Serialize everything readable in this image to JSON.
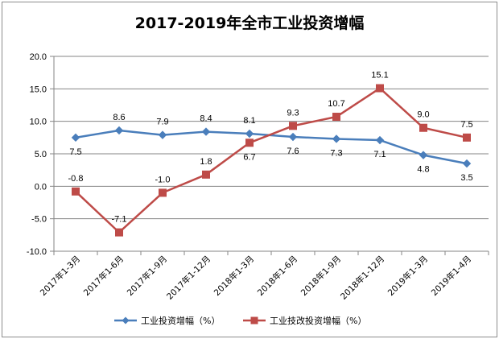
{
  "chart_data": {
    "type": "line",
    "title": "2017-2019年全市工业投资增幅",
    "categories": [
      "2017年1-3月",
      "2017年1-6月",
      "2017年1-9月",
      "2017年1-12月",
      "2018年1-3月",
      "2018年1-6月",
      "2018年1-9月",
      "2018年1-12月",
      "2019年1-3月",
      "2019年1-4月"
    ],
    "ylim": [
      -10.0,
      20.0
    ],
    "yticks": [
      "20.0",
      "15.0",
      "10.0",
      "5.0",
      "0.0",
      "-5.0",
      "-10.0"
    ],
    "grid": true,
    "legend_position": "bottom",
    "series": [
      {
        "name": "工业投资增幅（%）",
        "color": "#4a7ebb",
        "marker": "diamond",
        "values": [
          7.5,
          8.6,
          7.9,
          8.4,
          8.1,
          7.6,
          7.3,
          7.1,
          4.8,
          3.5
        ],
        "labels": [
          "7.5",
          "8.6",
          "7.9",
          "8.4",
          "8.1",
          "7.6",
          "7.3",
          "7.1",
          "4.8",
          "3.5"
        ]
      },
      {
        "name": "工业技改投资增幅（%）",
        "color": "#be4b48",
        "marker": "square",
        "values": [
          -0.8,
          -7.1,
          -1.0,
          1.8,
          6.7,
          9.3,
          10.7,
          15.1,
          9.0,
          7.5
        ],
        "labels": [
          "-0.8",
          "-7.1",
          "-1.0",
          "1.8",
          "6.7",
          "9.3",
          "10.7",
          "15.1",
          "9.0",
          "7.5"
        ]
      }
    ]
  }
}
